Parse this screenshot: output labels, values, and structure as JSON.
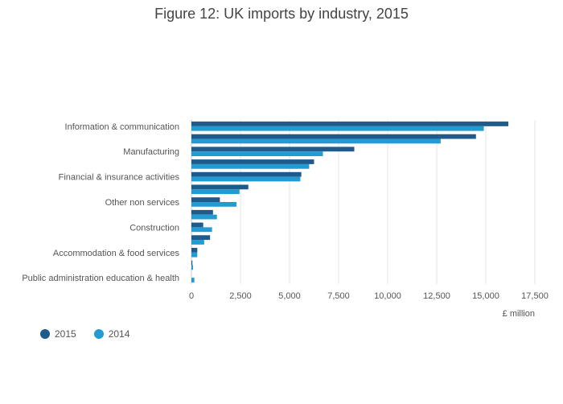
{
  "title": "Figure 12: UK imports by industry, 2015",
  "colors": {
    "s2015": "#1f5a8b",
    "s2014": "#229bd2",
    "grid": "#e4e4e4"
  },
  "legend": [
    {
      "label": "2015",
      "color": "#1f5a8b"
    },
    {
      "label": "2014",
      "color": "#229bd2"
    }
  ],
  "chart_data": {
    "type": "bar",
    "orientation": "horizontal",
    "title": "Figure 12: UK imports by industry, 2015",
    "xlabel": "£ million",
    "ylabel": "",
    "xlim": [
      0,
      17500
    ],
    "xticks": [
      "0",
      "2,500",
      "5,000",
      "7,500",
      "10,000",
      "12,500",
      "15,000",
      "17,500"
    ],
    "xtick_values": [
      0,
      2500,
      5000,
      7500,
      10000,
      12500,
      15000,
      17500
    ],
    "categories": [
      "Information & communication",
      "",
      "Manufacturing",
      "",
      "Financial & insurance activities",
      "",
      "Other non services",
      "",
      "Construction",
      "",
      "Accommodation & food services",
      "",
      "Public administration education & health"
    ],
    "series": [
      {
        "name": "2015",
        "values": [
          16150,
          14500,
          8300,
          6250,
          5600,
          2900,
          1450,
          1100,
          600,
          950,
          300,
          50,
          0
        ]
      },
      {
        "name": "2014",
        "values": [
          14900,
          12700,
          6700,
          6000,
          5550,
          2450,
          2300,
          1300,
          1050,
          650,
          300,
          80,
          150
        ]
      }
    ],
    "grid": true,
    "legend_position": "bottom-left"
  }
}
